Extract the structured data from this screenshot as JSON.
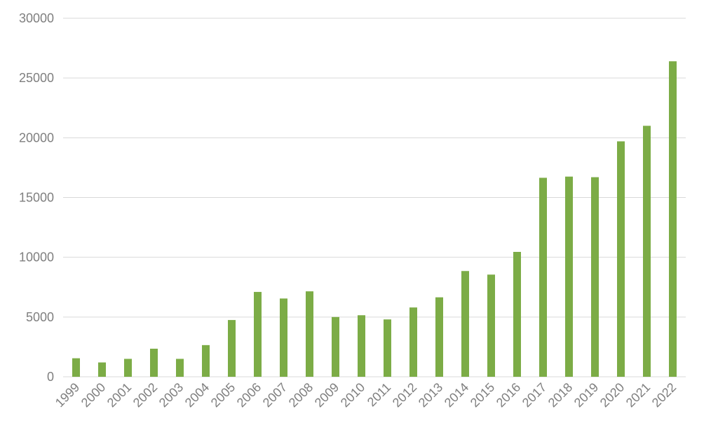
{
  "chart_data": {
    "type": "bar",
    "title": "",
    "xlabel": "",
    "ylabel": "",
    "categories": [
      "1999",
      "2000",
      "2001",
      "2002",
      "2003",
      "2004",
      "2005",
      "2006",
      "2007",
      "2008",
      "2009",
      "2010",
      "2011",
      "2012",
      "2013",
      "2014",
      "2015",
      "2016",
      "2017",
      "2018",
      "2019",
      "2020",
      "2021",
      "2022"
    ],
    "values": [
      1550,
      1200,
      1500,
      2350,
      1500,
      2650,
      4750,
      7100,
      6550,
      7150,
      5000,
      5150,
      4800,
      5800,
      6650,
      8850,
      8550,
      10450,
      16650,
      16750,
      16700,
      19700,
      21000,
      26400
    ],
    "ylim": [
      0,
      30000
    ],
    "yticks": [
      0,
      5000,
      10000,
      15000,
      20000,
      25000,
      30000
    ],
    "grid": true,
    "bar_color": "#7cac46"
  }
}
